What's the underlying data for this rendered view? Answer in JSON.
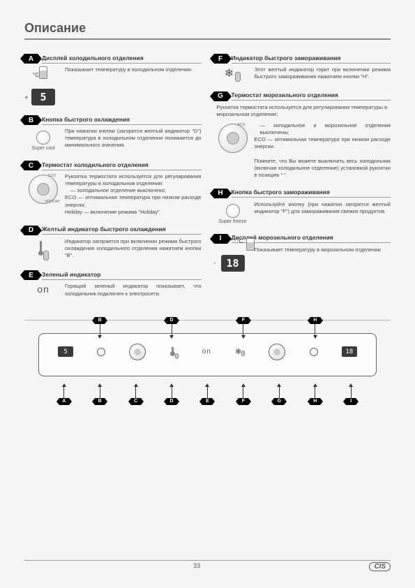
{
  "title": "Описание",
  "page_number": "33",
  "brand": "CIS",
  "A": {
    "title": "Дисплей холодильного отделения",
    "text": "Показывает температуру в холодильном отделении.",
    "display": "5",
    "unit": "°C",
    "sign": "+"
  },
  "B": {
    "title": "Кнопка быстрого охлаждения",
    "text": "При нажатии кнопки (загорится желтый индикатор \"D\") температура в холодильном отделении понижается до минимального значения.",
    "label": "Super cool"
  },
  "C": {
    "title": "Термостат холодильного отделения",
    "text": "Рукоятка термостата используется для регулирования температуры в холодильном отделении:",
    "bullet1": "— холодильное отделение выключено;",
    "bullet2": "ECO — оптимальная температура при низком расходе энергии;",
    "bullet3": "Holiday — включение режима \"Holiday\".",
    "knob_eco": "ECO",
    "knob_holiday": "HOLIDAY"
  },
  "D": {
    "title": "Желтый индикатор быстрого охлаждения",
    "text": "Индикатор загорается при включении режима быстрого охлаждения холодильного отделения нажатием кнопки \"B\"."
  },
  "E": {
    "title": "Зеленый индикатор",
    "text": "Горящий зеленый индикатор показывает, что холодильник подключен к электросети.",
    "on": "on"
  },
  "F": {
    "title": "Индикатор быстрого замораживания",
    "text": "Этот желтый индикатор горит при включении режима быстрого замораживания нажатием кнопки \"H\"."
  },
  "G": {
    "title": "Термостат морозильного отделения",
    "text": "Рукоятка термостата используется для регулирования температуры в морозильном отделении:",
    "bullet1": "— холодильное и морозильное отделения выключены;",
    "bullet2": "ECO — оптимальная температура при низком расходе энергии.",
    "note": "Помните, что Вы можете выключить весь холодильник (включая холодильное отделение) установкой рукоятки в позицию \" \".",
    "knob_eco": "ECO"
  },
  "H": {
    "title": "Кнопка быстрого замораживания",
    "text": "Используйте кнопку (при нажатии загорится желтый индикатор \"F\") для замораживания свежих продуктов.",
    "label": "Super freeze"
  },
  "I": {
    "title": "Дисплей морозильного отделения",
    "text": "Показывает температуру в морозильном отделении",
    "display": "18",
    "unit": "°C",
    "sign": "-"
  },
  "panel": {
    "top_callouts": [
      "B",
      "D",
      "F",
      "H"
    ],
    "bot_callouts": [
      "A",
      "B",
      "C",
      "D",
      "E",
      "F",
      "G",
      "H",
      "I"
    ],
    "disp1": "5",
    "disp2": "18",
    "on": "on"
  }
}
